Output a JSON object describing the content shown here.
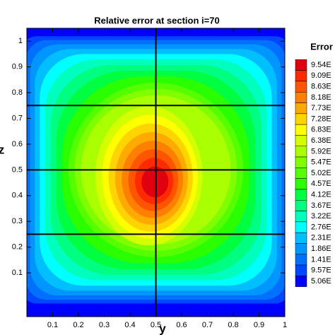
{
  "chart_data": {
    "type": "contour",
    "title": "Relative error at section i=70",
    "x_label": "y",
    "y_label": "z",
    "xlim": [
      0,
      1
    ],
    "ylim": [
      -0.07,
      1.05
    ],
    "xticks": [
      0.1,
      0.2,
      0.3,
      0.4,
      0.5,
      0.6,
      0.7,
      0.8,
      0.9,
      1
    ],
    "yticks": [
      0.1,
      0.2,
      0.3,
      0.4,
      0.5,
      0.6,
      0.7,
      0.8,
      0.9,
      1
    ],
    "section_lines_x": [
      0.5
    ],
    "section_lines_y": [
      0.25,
      0.5,
      0.75
    ],
    "legend_title": "Error",
    "levels": [
      {
        "label": "9.54E",
        "color": "#e00010"
      },
      {
        "label": "9.09E",
        "color": "#ff2a00"
      },
      {
        "label": "8.63E",
        "color": "#ff5500"
      },
      {
        "label": "8.18E",
        "color": "#ff8000"
      },
      {
        "label": "7.73E",
        "color": "#ffaa00"
      },
      {
        "label": "7.28E",
        "color": "#ffd400"
      },
      {
        "label": "6.83E",
        "color": "#ffff00"
      },
      {
        "label": "6.38E",
        "color": "#d4ff00"
      },
      {
        "label": "5.92E",
        "color": "#aaff00"
      },
      {
        "label": "5.47E",
        "color": "#80ff00"
      },
      {
        "label": "5.02E",
        "color": "#55ff00"
      },
      {
        "label": "4.57E",
        "color": "#2aff00"
      },
      {
        "label": "4.12E",
        "color": "#00ff40"
      },
      {
        "label": "3.67E",
        "color": "#00ff80"
      },
      {
        "label": "3.22E",
        "color": "#00ffbf"
      },
      {
        "label": "2.76E",
        "color": "#00ffff"
      },
      {
        "label": "2.31E",
        "color": "#00bfff"
      },
      {
        "label": "1.86E",
        "color": "#0096ff"
      },
      {
        "label": "1.41E",
        "color": "#0070ff"
      },
      {
        "label": "9.57E",
        "color": "#0045ff"
      },
      {
        "label": "5.06E",
        "color": "#0000ff"
      }
    ]
  }
}
